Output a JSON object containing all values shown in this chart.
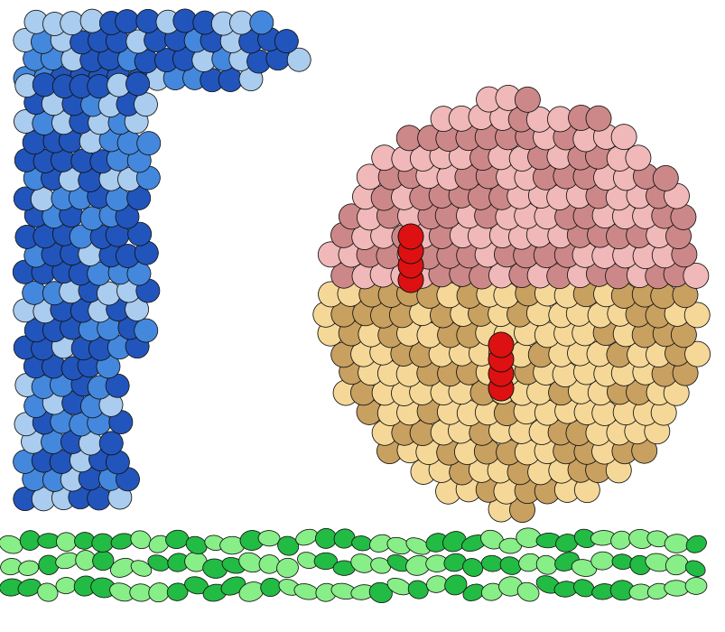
{
  "background_color": "#ffffff",
  "fig_width": 8.04,
  "fig_height": 7.0,
  "dpi": 100,
  "trna_color_dark": "#2255bb",
  "trna_color_mid": "#4488dd",
  "trna_color_light": "#aaccee",
  "trna_outline": "#111111",
  "hemo_pink_dark": "#cc8888",
  "hemo_pink_light": "#f0b8b8",
  "hemo_tan_dark": "#c8a060",
  "hemo_tan_light": "#f5d898",
  "hemo_red_color": "#dd1111",
  "hemo_outline": "#111111",
  "agarose_color_dark": "#22bb44",
  "agarose_color_light": "#88ee88",
  "agarose_outline": "#111111"
}
